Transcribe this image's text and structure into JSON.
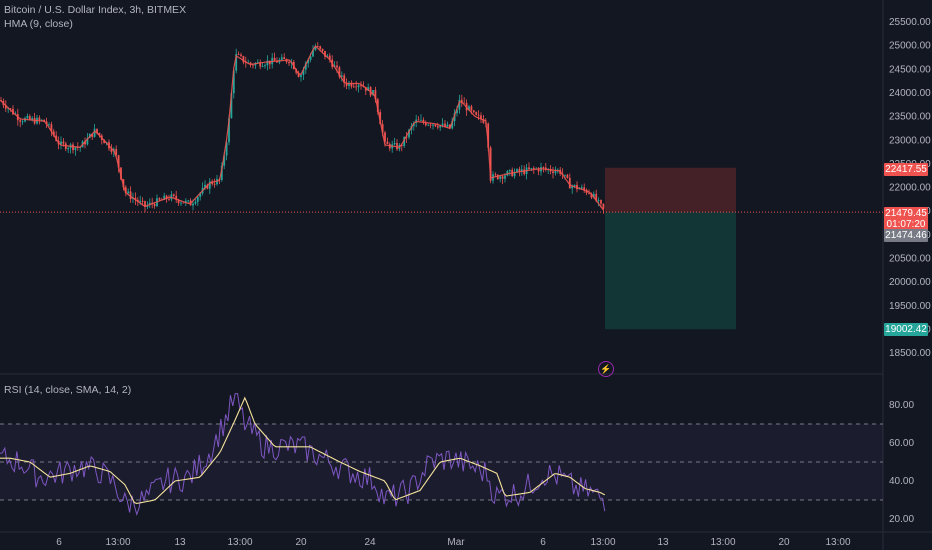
{
  "header": {
    "symbol": "Bitcoin / U.S. Dollar Index, 3h, BITMEX",
    "hma": "HMA (9, close)",
    "rsi": "RSI (14, close, SMA, 14, 2)"
  },
  "price_axis": {
    "ticks": [
      "25500.00",
      "25000.00",
      "24500.00",
      "24000.00",
      "23500.00",
      "23000.00",
      "22500.00",
      "22000.00",
      "21500.00",
      "21000.00",
      "20500.00",
      "20000.00",
      "19500.00",
      "19000.00",
      "18500.00"
    ]
  },
  "rsi_axis": {
    "ticks": [
      "80.00",
      "60.00",
      "40.00",
      "20.00"
    ]
  },
  "time_axis": {
    "labels": [
      "6",
      "13:00",
      "13",
      "13:00",
      "20",
      "24",
      "Mar",
      "6",
      "13:00",
      "13",
      "13:00",
      "20",
      "13:00"
    ]
  },
  "badges": {
    "target": "22417.55",
    "current": "21479.45",
    "countdown": "01:07:20",
    "hma_value": "21474.46",
    "stop": "19002.42"
  },
  "colors": {
    "background": "#131722",
    "up": "#26a69a",
    "down": "#ef5350",
    "hma": "#ef5350",
    "rsi_line": "#7e57c2",
    "rsi_ma": "#f5e39b",
    "target_zone": "#4a2228",
    "stop_zone": "#123a37"
  },
  "icons": {
    "lightning": "⚡"
  }
}
